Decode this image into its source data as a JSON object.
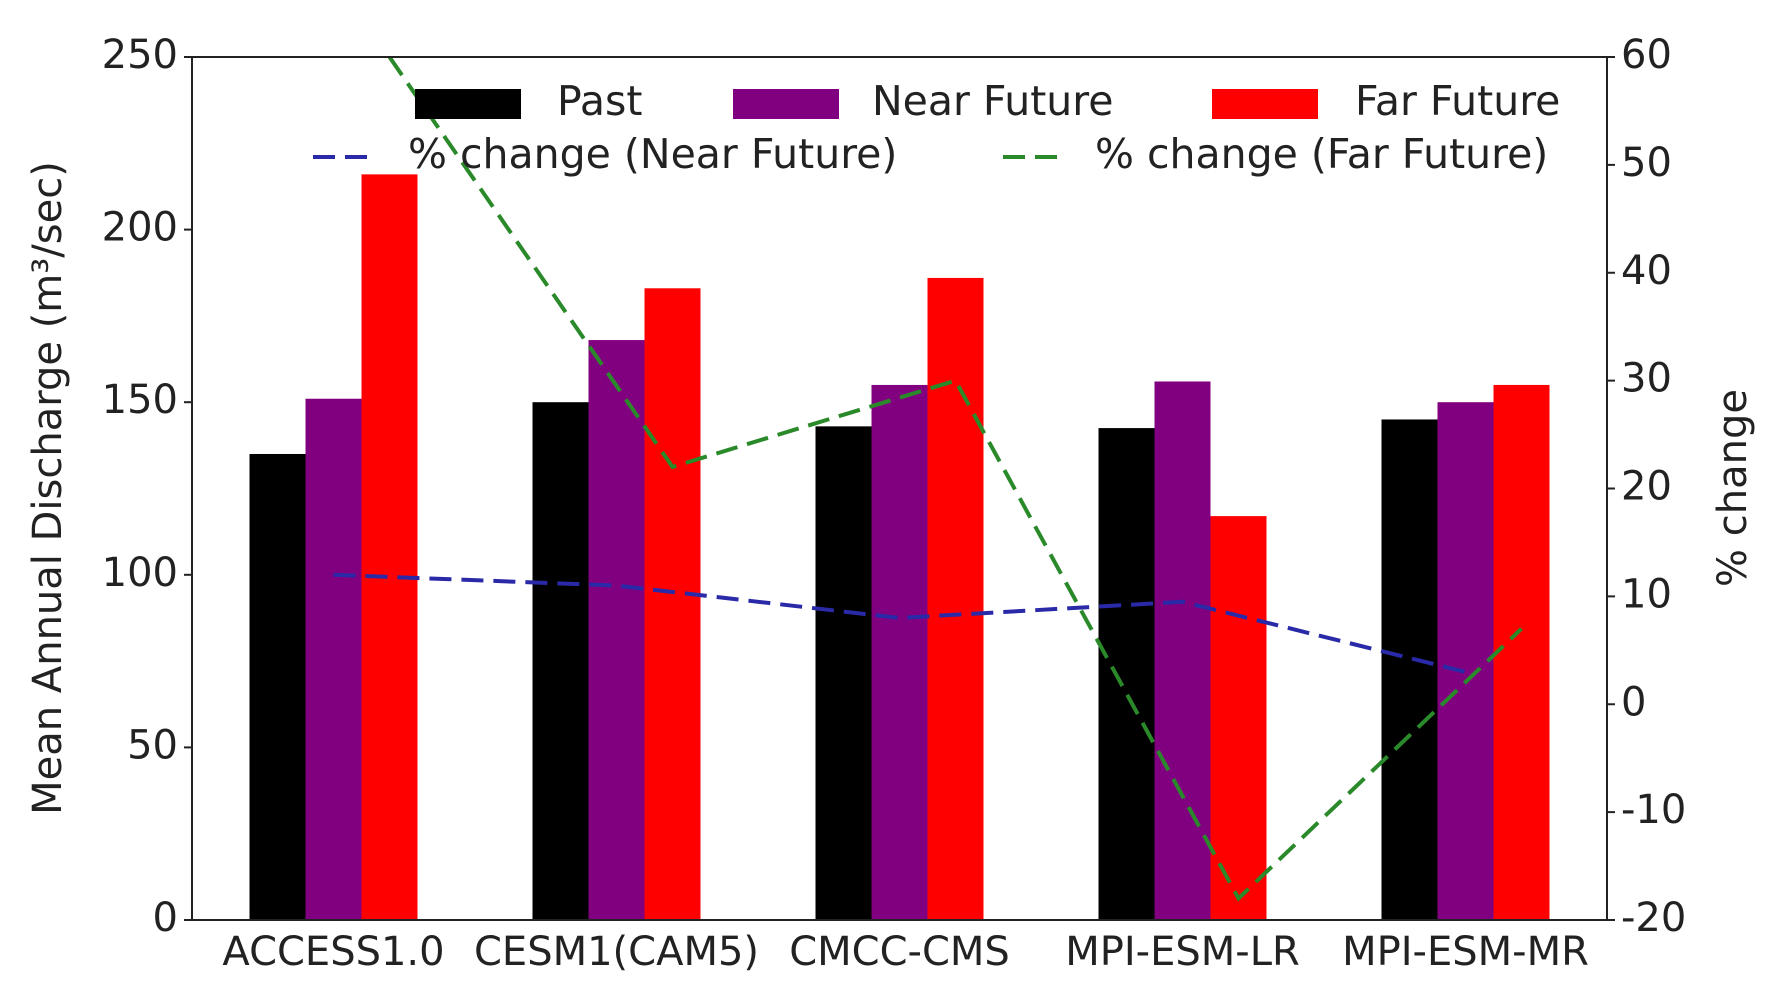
{
  "chart_data": {
    "type": "bar",
    "categories": [
      "ACCESS1.0",
      "CESM1(CAM5)",
      "CMCC-CMS",
      "MPI-ESM-LR",
      "MPI-ESM-MR"
    ],
    "y_label": "Mean Annual Discharge (m³/sec)",
    "y2_label": "% change",
    "ylim": [
      0,
      250
    ],
    "yticks": [
      0,
      50,
      100,
      150,
      200,
      250
    ],
    "y2lim": [
      -20,
      60
    ],
    "y2ticks": [
      -20,
      -10,
      0,
      10,
      20,
      30,
      40,
      50,
      60
    ],
    "legend": "upper right",
    "series": [
      {
        "name": "Past",
        "color": "#000000",
        "kind": "bar",
        "values": [
          135,
          150,
          143,
          142.5,
          145
        ]
      },
      {
        "name": "Near Future",
        "color": "#800080",
        "kind": "bar",
        "values": [
          151,
          168,
          155,
          156,
          150
        ]
      },
      {
        "name": "Far Future",
        "color": "#ff0000",
        "kind": "bar",
        "values": [
          216,
          183,
          186,
          117,
          155
        ]
      },
      {
        "name": "% change (Near Future)",
        "color": "#2a2aa8",
        "kind": "line",
        "axis": "y2",
        "dashed": true,
        "values": [
          12,
          11,
          8,
          9.5,
          3
        ]
      },
      {
        "name": "% change (Far Future)",
        "color": "#2a8a2a",
        "kind": "line",
        "axis": "y2",
        "dashed": true,
        "values": [
          60,
          22,
          30,
          -18,
          7
        ]
      }
    ]
  }
}
